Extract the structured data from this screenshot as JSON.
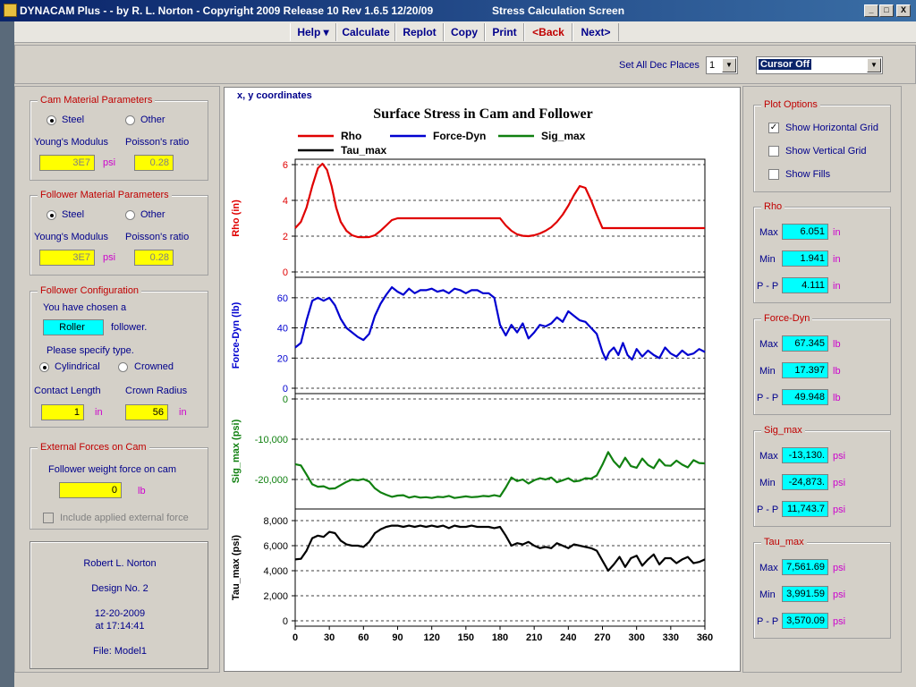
{
  "window": {
    "title": "DYNACAM Plus -  - by R. L. Norton - Copyright 2009 Release 10  Rev 1.6.5  12/20/09",
    "screen_title": "Stress Calculation Screen",
    "min": "_",
    "max": "□",
    "close": "X"
  },
  "menu": [
    "Help ▾",
    "Calculate",
    "Replot",
    "Copy",
    "Print",
    "<Back",
    "Next>"
  ],
  "toolbar": {
    "dec_label": "Set All Dec Places",
    "dec_value": "1",
    "cursor_value": "Cursor Off"
  },
  "cam_material": {
    "title": "Cam Material Parameters",
    "opt_steel": "Steel",
    "opt_other": "Other",
    "youngs_label": "Young's Modulus",
    "poisson_label": "Poisson's ratio",
    "youngs_value": "3E7",
    "youngs_unit": "psi",
    "poisson_value": "0.28"
  },
  "follower_material": {
    "title": "Follower Material Parameters",
    "opt_steel": "Steel",
    "opt_other": "Other",
    "youngs_label": "Young's Modulus",
    "poisson_label": "Poisson's ratio",
    "youngs_value": "3E7",
    "youngs_unit": "psi",
    "poisson_value": "0.28"
  },
  "follower_config": {
    "title": "Follower Configuration",
    "chosen_label": "You have chosen a",
    "type_value": "Roller",
    "follower_word": "follower.",
    "specify_label": "Please specify type.",
    "opt_cyl": "Cylindrical",
    "opt_crowned": "Crowned",
    "contact_label": "Contact Length",
    "crown_label": "Crown Radius",
    "contact_value": "1",
    "contact_unit": "in",
    "crown_value": "56",
    "crown_unit": "in"
  },
  "external_forces": {
    "title": "External Forces on Cam",
    "weight_label": "Follower weight force on cam",
    "weight_value": "0",
    "weight_unit": "lb",
    "include_label": "Include applied external force"
  },
  "info": {
    "author": "Robert L. Norton",
    "design": "Design No. 2",
    "date": "12-20-2009",
    "time": "at 17:14:41",
    "file": "File: Model1"
  },
  "plot_options": {
    "title": "Plot Options",
    "horiz": "Show Horizontal Grid",
    "vert": "Show Vertical Grid",
    "fills": "Show Fills"
  },
  "stats": [
    {
      "title": "Rho",
      "unit": "in",
      "max": "6.051",
      "min": "1.941",
      "pp": "4.111"
    },
    {
      "title": "Force-Dyn",
      "unit": "lb",
      "max": "67.345",
      "min": "17.397",
      "pp": "49.948"
    },
    {
      "title": "Sig_max",
      "unit": "psi",
      "max": "-13,130.",
      "min": "-24,873.",
      "pp": "11,743.7"
    },
    {
      "title": "Tau_max",
      "unit": "psi",
      "max": "7,561.69",
      "min": "3,991.59",
      "pp": "3,570.09"
    }
  ],
  "stat_labels": {
    "max": "Max",
    "min": "Min",
    "pp": "P - P"
  },
  "colors": {
    "rho": "#e00000",
    "force": "#0000d0",
    "sig": "#108010",
    "tau": "#000000"
  },
  "chart_data": {
    "type": "line",
    "title": "Surface Stress in Cam and Follower",
    "coord_label": "x, y  coordinates",
    "legend": [
      "Rho",
      "Force-Dyn",
      "Sig_max",
      "Tau_max"
    ],
    "x_ticks": [
      0,
      30,
      60,
      90,
      120,
      150,
      180,
      210,
      240,
      270,
      300,
      330,
      360
    ],
    "xlim": [
      0,
      360
    ],
    "grid": "horizontal",
    "panels": [
      {
        "name": "Rho",
        "ylabel": "Rho  (in)",
        "ylim": [
          0,
          6
        ],
        "ticks": [
          {
            "v": 0,
            "l": "0"
          },
          {
            "v": 2,
            "l": "2"
          },
          {
            "v": 4,
            "l": "4"
          },
          {
            "v": 6,
            "l": "6"
          }
        ],
        "x": [
          0,
          5,
          10,
          15,
          20,
          24,
          28,
          32,
          36,
          40,
          45,
          50,
          55,
          60,
          65,
          70,
          75,
          80,
          85,
          90,
          100,
          120,
          150,
          180,
          185,
          190,
          195,
          200,
          205,
          210,
          215,
          220,
          225,
          230,
          235,
          240,
          245,
          250,
          255,
          260,
          265,
          270,
          275,
          300,
          330,
          360
        ],
        "y": [
          2.45,
          2.8,
          3.6,
          4.8,
          5.8,
          6.05,
          5.7,
          4.8,
          3.6,
          2.8,
          2.3,
          2.05,
          1.95,
          1.94,
          1.95,
          2.05,
          2.3,
          2.6,
          2.9,
          3.0,
          3.0,
          3.0,
          3.0,
          3.0,
          2.6,
          2.3,
          2.1,
          2.02,
          2.0,
          2.05,
          2.15,
          2.3,
          2.5,
          2.8,
          3.2,
          3.7,
          4.3,
          4.8,
          4.7,
          4.0,
          3.2,
          2.45,
          2.45,
          2.45,
          2.45,
          2.45
        ]
      },
      {
        "name": "Force-Dyn",
        "ylabel": "Force-Dyn  (lb)",
        "ylim": [
          0,
          70
        ],
        "ticks": [
          {
            "v": 0,
            "l": "0"
          },
          {
            "v": 20,
            "l": "20"
          },
          {
            "v": 40,
            "l": "40"
          },
          {
            "v": 60,
            "l": "60"
          }
        ],
        "x": [
          0,
          5,
          10,
          15,
          20,
          25,
          30,
          35,
          40,
          45,
          50,
          55,
          60,
          65,
          70,
          75,
          80,
          85,
          90,
          95,
          100,
          105,
          110,
          115,
          120,
          125,
          130,
          135,
          140,
          145,
          150,
          155,
          160,
          165,
          170,
          175,
          180,
          185,
          190,
          195,
          200,
          205,
          210,
          215,
          220,
          225,
          230,
          235,
          240,
          245,
          250,
          255,
          260,
          265,
          270,
          273,
          276,
          280,
          284,
          288,
          292,
          296,
          300,
          305,
          310,
          315,
          320,
          325,
          330,
          335,
          340,
          345,
          350,
          355,
          360
        ],
        "y": [
          27,
          30,
          45,
          58,
          60,
          58,
          60,
          55,
          46,
          40,
          37,
          34,
          32,
          36,
          48,
          56,
          62,
          67,
          64,
          62,
          66,
          63,
          65,
          65,
          66,
          64,
          65,
          63,
          66,
          65,
          63,
          65,
          65,
          63,
          63,
          60,
          42,
          35,
          42,
          37,
          43,
          33,
          37,
          42,
          41,
          43,
          47,
          44,
          51,
          48,
          45,
          44,
          40,
          36,
          24,
          19,
          24,
          27,
          22,
          30,
          22,
          19,
          26,
          21,
          25,
          22,
          20,
          27,
          23,
          21,
          25,
          22,
          23,
          26,
          24
        ]
      },
      {
        "name": "Sig_max",
        "ylabel": "Sig_max  (psi)",
        "ylim": [
          -26000,
          0
        ],
        "ticks": [
          {
            "v": 0,
            "l": "0"
          },
          {
            "v": -10000,
            "l": "-10,000"
          },
          {
            "v": -20000,
            "l": "-20,000"
          }
        ],
        "x": [
          0,
          5,
          10,
          15,
          20,
          25,
          30,
          35,
          40,
          45,
          50,
          55,
          60,
          65,
          70,
          75,
          80,
          85,
          90,
          95,
          100,
          105,
          110,
          115,
          120,
          125,
          130,
          135,
          140,
          145,
          150,
          155,
          160,
          165,
          170,
          175,
          180,
          185,
          190,
          195,
          200,
          205,
          210,
          215,
          220,
          225,
          230,
          235,
          240,
          245,
          250,
          255,
          260,
          265,
          270,
          275,
          280,
          285,
          290,
          295,
          300,
          305,
          310,
          315,
          320,
          325,
          330,
          335,
          340,
          345,
          350,
          355,
          360
        ],
        "y": [
          -16200,
          -16500,
          -18800,
          -21200,
          -21800,
          -21700,
          -22300,
          -22200,
          -21400,
          -20600,
          -20000,
          -20200,
          -19900,
          -20500,
          -22200,
          -23200,
          -23800,
          -24300,
          -24000,
          -23900,
          -24500,
          -24200,
          -24500,
          -24400,
          -24600,
          -24300,
          -24400,
          -24100,
          -24600,
          -24400,
          -24200,
          -24400,
          -24300,
          -24100,
          -24200,
          -23900,
          -24200,
          -22000,
          -19500,
          -20400,
          -20000,
          -21000,
          -20200,
          -19700,
          -20000,
          -19500,
          -20700,
          -20200,
          -19700,
          -20500,
          -20300,
          -19700,
          -19800,
          -19000,
          -16300,
          -13200,
          -15500,
          -17000,
          -14600,
          -16700,
          -17100,
          -14800,
          -16400,
          -17200,
          -15000,
          -16500,
          -16600,
          -15300,
          -16300,
          -17000,
          -15200,
          -15900,
          -16000
        ]
      },
      {
        "name": "Tau_max",
        "ylabel": "Tau_max  (psi)",
        "ylim": [
          0,
          8500
        ],
        "ticks": [
          {
            "v": 0,
            "l": "0"
          },
          {
            "v": 2000,
            "l": "2,000"
          },
          {
            "v": 4000,
            "l": "4,000"
          },
          {
            "v": 6000,
            "l": "6,000"
          },
          {
            "v": 8000,
            "l": "8,000"
          }
        ],
        "x": [
          0,
          5,
          10,
          15,
          20,
          25,
          30,
          35,
          40,
          45,
          50,
          55,
          60,
          65,
          70,
          75,
          80,
          85,
          90,
          95,
          100,
          105,
          110,
          115,
          120,
          125,
          130,
          135,
          140,
          145,
          150,
          155,
          160,
          165,
          170,
          175,
          180,
          185,
          190,
          195,
          200,
          205,
          210,
          215,
          220,
          225,
          230,
          235,
          240,
          245,
          250,
          255,
          260,
          265,
          270,
          275,
          280,
          285,
          290,
          295,
          300,
          305,
          310,
          315,
          320,
          325,
          330,
          335,
          340,
          345,
          350,
          355,
          360
        ],
        "y": [
          4900,
          4950,
          5600,
          6600,
          6800,
          6700,
          7100,
          7000,
          6400,
          6100,
          6000,
          6000,
          5900,
          6300,
          7000,
          7300,
          7500,
          7600,
          7600,
          7500,
          7600,
          7500,
          7600,
          7500,
          7600,
          7500,
          7600,
          7400,
          7600,
          7500,
          7500,
          7600,
          7500,
          7500,
          7500,
          7400,
          7500,
          6800,
          6000,
          6200,
          6100,
          6300,
          6000,
          5800,
          5900,
          5800,
          6200,
          6000,
          5800,
          6100,
          6000,
          5900,
          5800,
          5600,
          4800,
          4000,
          4500,
          5100,
          4300,
          5000,
          5200,
          4400,
          4900,
          5300,
          4500,
          5000,
          5000,
          4600,
          4900,
          5100,
          4600,
          4700,
          4900
        ]
      }
    ]
  }
}
